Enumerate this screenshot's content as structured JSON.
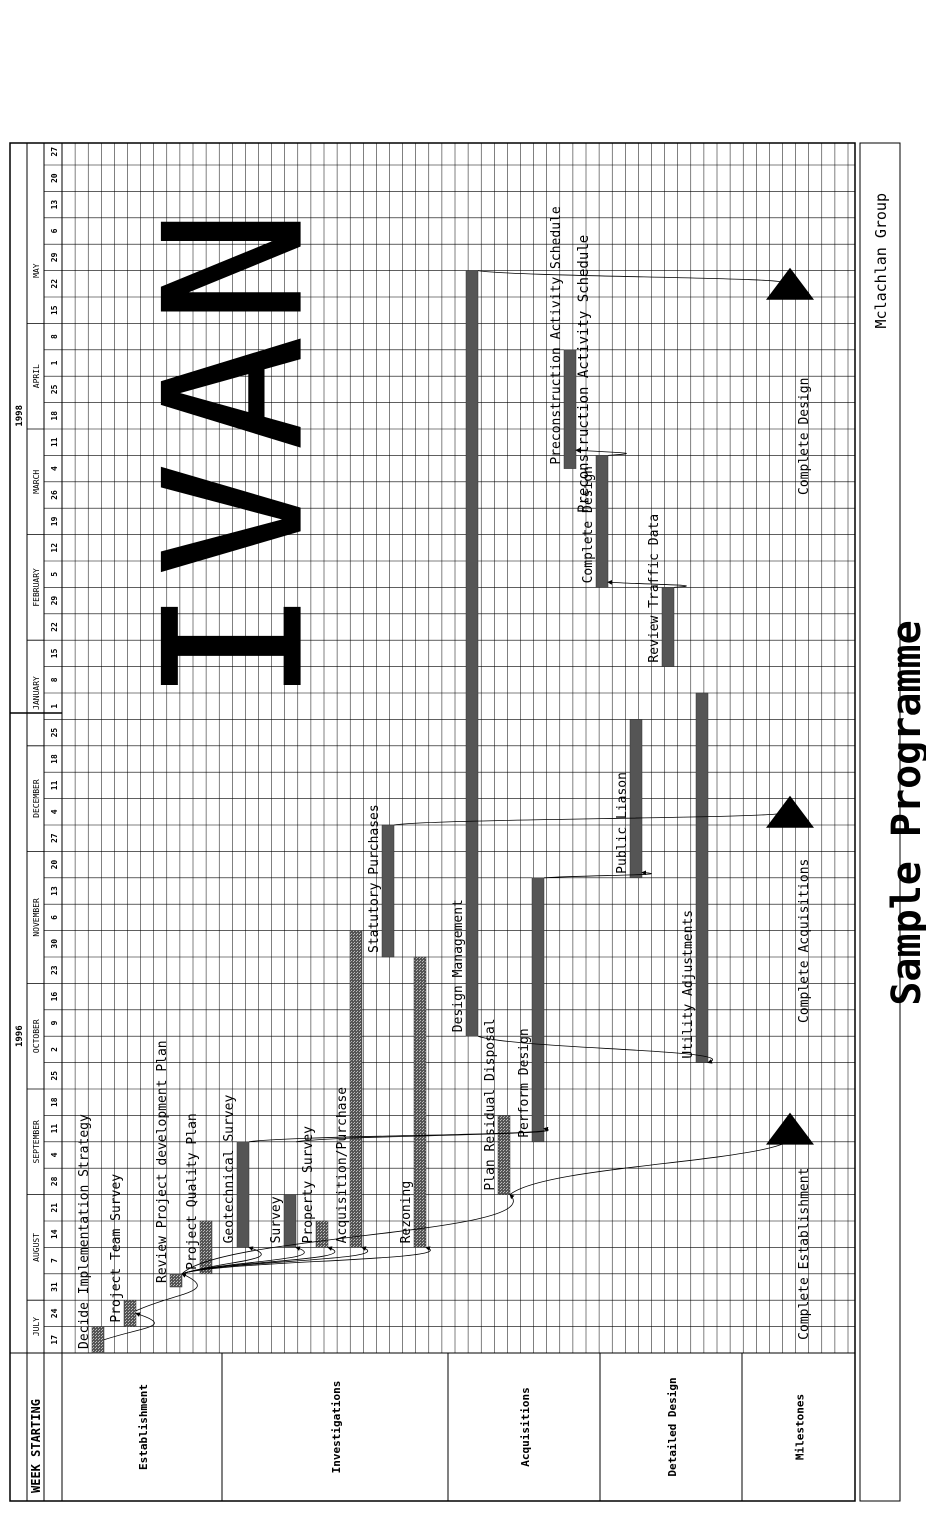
{
  "chart_data": {
    "type": "gantt",
    "title": "Sample Programme",
    "company": "Mclachlan Group",
    "chart_subtitle": "Preconstruction Activity Schedule",
    "watermark": "IVAN",
    "header_label": "WEEK STARTING",
    "years": [
      {
        "label": "1996",
        "first_week": 0,
        "last_week": 23
      },
      {
        "label": "1998",
        "first_week": 24,
        "last_week": 46
      }
    ],
    "months": [
      {
        "label": "JULY",
        "first_week": 0,
        "last_week": 1
      },
      {
        "label": "AUGUST",
        "first_week": 2,
        "last_week": 5
      },
      {
        "label": "SEPTEMBER",
        "first_week": 6,
        "last_week": 9
      },
      {
        "label": "OCTOBER",
        "first_week": 10,
        "last_week": 13
      },
      {
        "label": "NOVEMBER",
        "first_week": 14,
        "last_week": 18
      },
      {
        "label": "DECEMBER",
        "first_week": 19,
        "last_week": 22
      },
      {
        "label": "JANUARY",
        "first_week": 23,
        "last_week": 26
      },
      {
        "label": "FEBRUARY",
        "first_week": 27,
        "last_week": 30
      },
      {
        "label": "MARCH",
        "first_week": 31,
        "last_week": 34
      },
      {
        "label": "APRIL",
        "first_week": 35,
        "last_week": 38
      },
      {
        "label": "MAY",
        "first_week": 39,
        "last_week": 42
      }
    ],
    "weeks": [
      "17",
      "24",
      "31",
      "7",
      "14",
      "21",
      "28",
      "4",
      "11",
      "18",
      "25",
      "2",
      "9",
      "16",
      "23",
      "30",
      "6",
      "13",
      "20",
      "27",
      "4",
      "11",
      "18",
      "25",
      "1",
      "8",
      "15",
      "22",
      "29",
      "5",
      "12",
      "19",
      "26",
      "4",
      "11",
      "18",
      "25",
      "1",
      "8",
      "15",
      "22",
      "29",
      "6",
      "13",
      "20",
      "27"
    ],
    "groups": [
      {
        "label": "Establishment"
      },
      {
        "label": "Investigations"
      },
      {
        "label": "Acquisitions"
      },
      {
        "label": "Detailed Design"
      },
      {
        "label": "Milestones"
      }
    ],
    "tasks": [
      {
        "label": "Decide Implementation Strategy",
        "group": "Establishment",
        "start_week": 0,
        "end_week": 1,
        "hatched": true
      },
      {
        "label": "Project Team Survey",
        "group": "Establishment",
        "start_week": 1,
        "end_week": 2,
        "hatched": true
      },
      {
        "label": "Review Project development Plan",
        "group": "Establishment",
        "start_week": 2.5,
        "end_week": 3,
        "hatched": true
      },
      {
        "label": "Project Quality Plan",
        "group": "Establishment",
        "start_week": 3,
        "end_week": 5,
        "hatched": true
      },
      {
        "label": "Geotechnical Survey",
        "group": "Investigations",
        "start_week": 4,
        "end_week": 8,
        "hatched": false
      },
      {
        "label": "Survey",
        "group": "Investigations",
        "start_week": 4,
        "end_week": 6,
        "hatched": false
      },
      {
        "label": "Property Survey",
        "group": "Investigations",
        "start_week": 4,
        "end_week": 5,
        "hatched": true
      },
      {
        "label": "Acquisition/Purchase",
        "group": "Acquisitions",
        "start_week": 4,
        "end_week": 16,
        "hatched": true
      },
      {
        "label": "Statutory Purchases",
        "group": "Acquisitions",
        "start_week": 15,
        "end_week": 20,
        "hatched": false
      },
      {
        "label": "Rezoning",
        "group": "Acquisitions",
        "start_week": 4,
        "end_week": 15,
        "hatched": true
      },
      {
        "label": "Plan Residual Disposal",
        "group": "Acquisitions",
        "start_week": 6,
        "end_week": 9,
        "hatched": true
      },
      {
        "label": "Design Management",
        "group": "Detailed Design",
        "start_week": 12,
        "end_week": 41,
        "hatched": false
      },
      {
        "label": "Perform Design",
        "group": "Detailed Design",
        "start_week": 8,
        "end_week": 18,
        "hatched": false
      },
      {
        "label": "Public Liason",
        "group": "Detailed Design",
        "start_week": 18,
        "end_week": 24,
        "hatched": false
      },
      {
        "label": "Utility Adjustments",
        "group": "Detailed Design",
        "start_week": 11,
        "end_week": 25,
        "hatched": false
      },
      {
        "label": "Review Traffic Data",
        "group": "Detailed Design",
        "start_week": 26,
        "end_week": 29,
        "hatched": false
      },
      {
        "label": "Complete Design",
        "group": "Detailed Design",
        "start_week": 29,
        "end_week": 34,
        "hatched": false
      },
      {
        "label": "Preconstruction Activity Schedule",
        "group": "Detailed Design",
        "start_week": 33.5,
        "end_week": 38,
        "hatched": false
      }
    ],
    "milestones": [
      {
        "label": "Complete Establishment",
        "week": 8.5
      },
      {
        "label": "Complete Acquisitions",
        "week": 20.5
      },
      {
        "label": "Complete Design",
        "week": 40.5
      }
    ]
  }
}
